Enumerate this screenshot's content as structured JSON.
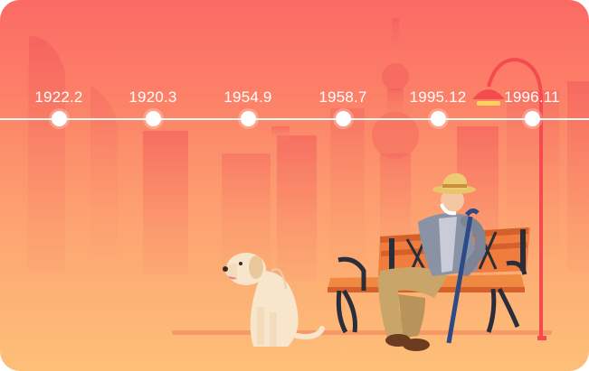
{
  "timeline": {
    "points": [
      {
        "label": "1922.2"
      },
      {
        "label": "1920.3"
      },
      {
        "label": "1954.9"
      },
      {
        "label": "1958.7"
      },
      {
        "label": "1995.12"
      },
      {
        "label": "1996.11"
      }
    ]
  },
  "colors": {
    "gradient_top": "#fb6a65",
    "gradient_bottom": "#fdbf78",
    "timeline": "#ffffff",
    "lamp_post": "#f44b4e"
  },
  "illustration": {
    "icons": [
      "skyline-illustration",
      "tv-tower-icon",
      "street-lamp-icon",
      "park-bench-icon",
      "elderly-man-icon",
      "dog-icon"
    ]
  }
}
